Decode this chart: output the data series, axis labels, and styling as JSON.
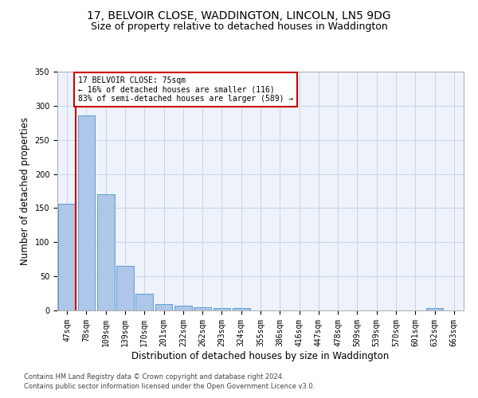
{
  "title_line1": "17, BELVOIR CLOSE, WADDINGTON, LINCOLN, LN5 9DG",
  "title_line2": "Size of property relative to detached houses in Waddington",
  "xlabel": "Distribution of detached houses by size in Waddington",
  "ylabel": "Number of detached properties",
  "footer_line1": "Contains HM Land Registry data © Crown copyright and database right 2024.",
  "footer_line2": "Contains public sector information licensed under the Open Government Licence v3.0.",
  "bar_labels": [
    "47sqm",
    "78sqm",
    "109sqm",
    "139sqm",
    "170sqm",
    "201sqm",
    "232sqm",
    "262sqm",
    "293sqm",
    "324sqm",
    "355sqm",
    "386sqm",
    "416sqm",
    "447sqm",
    "478sqm",
    "509sqm",
    "539sqm",
    "570sqm",
    "601sqm",
    "632sqm",
    "663sqm"
  ],
  "bar_values": [
    156,
    286,
    170,
    65,
    25,
    9,
    7,
    5,
    4,
    3,
    0,
    0,
    0,
    0,
    0,
    0,
    0,
    0,
    0,
    3,
    0
  ],
  "bar_color": "#aec6e8",
  "bar_edge_color": "#5a9fd4",
  "annotation_text": "17 BELVOIR CLOSE: 75sqm\n← 16% of detached houses are smaller (116)\n83% of semi-detached houses are larger (589) →",
  "annotation_box_color": "#ffffff",
  "annotation_box_edge_color": "#cc0000",
  "property_line_color": "#cc0000",
  "ylim": [
    0,
    350
  ],
  "yticks": [
    0,
    50,
    100,
    150,
    200,
    250,
    300,
    350
  ],
  "grid_color": "#c8d4e8",
  "bg_color": "#eef2fa",
  "title1_fontsize": 10,
  "title2_fontsize": 9,
  "xlabel_fontsize": 8.5,
  "ylabel_fontsize": 8.5,
  "tick_fontsize": 7,
  "footer_fontsize": 6,
  "annot_fontsize": 7
}
